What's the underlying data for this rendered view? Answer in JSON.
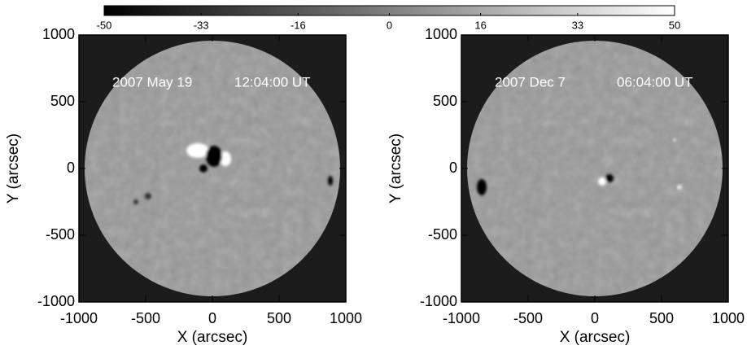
{
  "colorbar": {
    "lim": [
      -50,
      50
    ],
    "ticks": [
      -50,
      -33,
      -16,
      0,
      16,
      33,
      50
    ]
  },
  "chart_data": [
    {
      "type": "image",
      "annotations": [
        "2007 May 19",
        "12:04:00 UT"
      ],
      "xlabel": "X (arcsec)",
      "ylabel": "Y (arcsec)",
      "xlim": [
        -1000,
        1000
      ],
      "ylim": [
        -1000,
        1000
      ],
      "xticks": [
        -1000,
        -500,
        0,
        500,
        1000
      ],
      "yticks": [
        -1000,
        -500,
        0,
        500,
        1000
      ]
    },
    {
      "type": "image",
      "annotations": [
        "2007 Dec 7",
        "06:04:00 UT"
      ],
      "xlabel": "X (arcsec)",
      "ylabel": "Y (arcsec)",
      "xlim": [
        -1000,
        1000
      ],
      "ylim": [
        -1000,
        1000
      ],
      "xticks": [
        -1000,
        -500,
        0,
        500,
        1000
      ],
      "yticks": [
        -1000,
        -500,
        0,
        500,
        1000
      ]
    }
  ]
}
